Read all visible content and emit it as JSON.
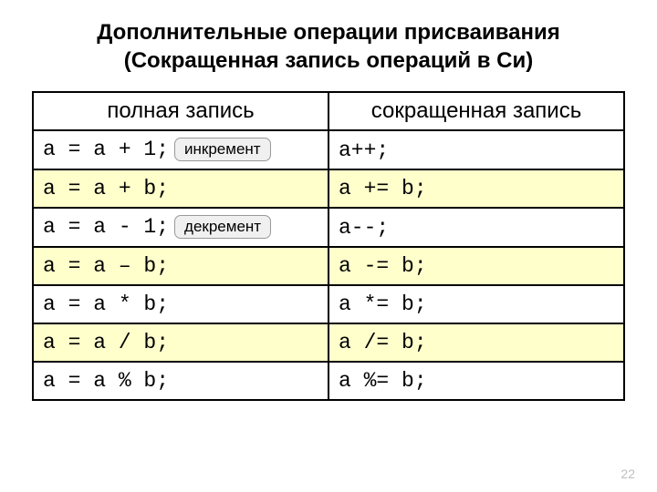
{
  "title_line1": "Дополнительные операции присваивания",
  "title_line2": "(Сокращенная запись операций в Си)",
  "headers": {
    "left": "полная запись",
    "right": "сокращенная запись"
  },
  "rows": [
    {
      "left": "a = a + 1;",
      "badge": "инкремент",
      "right": "a++;",
      "class": "plain"
    },
    {
      "left": "a = a + b;",
      "badge": "",
      "right": "a += b;",
      "class": "alt"
    },
    {
      "left": "a = a - 1;",
      "badge": "декремент",
      "right": "a--;",
      "class": "plain"
    },
    {
      "left": "a = a – b;",
      "badge": "",
      "right": "a -= b;",
      "class": "alt"
    },
    {
      "left": "a = a * b;",
      "badge": "",
      "right": "a *= b;",
      "class": "plain"
    },
    {
      "left": "a = a / b;",
      "badge": "",
      "right": "a /= b;",
      "class": "alt"
    },
    {
      "left": "a = a % b;",
      "badge": "",
      "right": "a %= b;",
      "class": "plain"
    }
  ],
  "page_number": "22",
  "colors": {
    "alt_row_bg": "#ffffcc",
    "plain_row_bg": "#ffffff",
    "border": "#000000",
    "badge_bg": "#f0f0f0",
    "badge_border": "#999999",
    "page_number": "#bfbfbf"
  }
}
